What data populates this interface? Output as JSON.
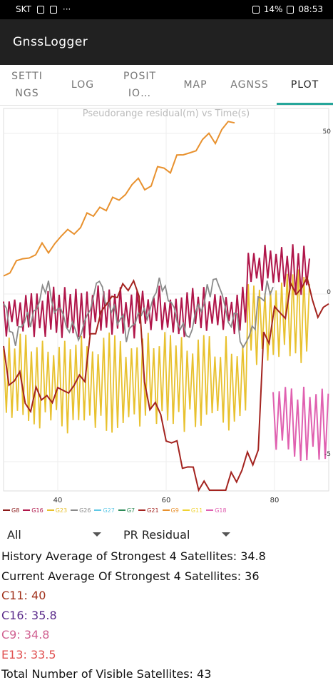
{
  "status": {
    "carrier": "SKT",
    "dots": "···",
    "battery": "14%",
    "time": "08:53"
  },
  "app": {
    "title": "GnssLogger"
  },
  "tabs": [
    {
      "label": "SETTI NGS"
    },
    {
      "label": "LOG"
    },
    {
      "label": "POSIT IO…"
    },
    {
      "label": "MAP"
    },
    {
      "label": "AGNSS"
    },
    {
      "label": "PLOT"
    }
  ],
  "chart_data": {
    "type": "line",
    "title": "Pseudorange residual(m) vs Time(s)",
    "x_ticks": [
      "40",
      "60",
      "80"
    ],
    "y_ticks": [
      "50",
      "0",
      "-5"
    ],
    "xlim": [
      30,
      90
    ],
    "series": [
      {
        "name": "G8",
        "color": "#8b1a1a"
      },
      {
        "name": "G16",
        "color": "#b0164a"
      },
      {
        "name": "G23",
        "color": "#e8c12e"
      },
      {
        "name": "G26",
        "color": "#8a8a8a"
      },
      {
        "name": "G27",
        "color": "#5ec8e6"
      },
      {
        "name": "G7",
        "color": "#2e8b57"
      },
      {
        "name": "G21",
        "color": "#a3231f"
      },
      {
        "name": "G9",
        "color": "#e8912e"
      },
      {
        "name": "G11",
        "color": "#f0d232"
      },
      {
        "name": "G18",
        "color": "#e060b0"
      }
    ]
  },
  "controls": {
    "constellation": "All",
    "plot_type": "PR Residual"
  },
  "stats": {
    "history": "History Average of Strongest 4 Satellites: 34.8",
    "current": "Current Average Of Strongest 4 Satellites: 36",
    "c11": "C11: 40",
    "c16": "C16: 35.8",
    "c9": "C9: 34.8",
    "e13": "E13: 33.5",
    "total": "Total Number of Visible Satellites: 43",
    "c11_color": "#a0301a",
    "c16_color": "#5a2a8a",
    "c9_color": "#d06090",
    "e13_color": "#e05050"
  }
}
